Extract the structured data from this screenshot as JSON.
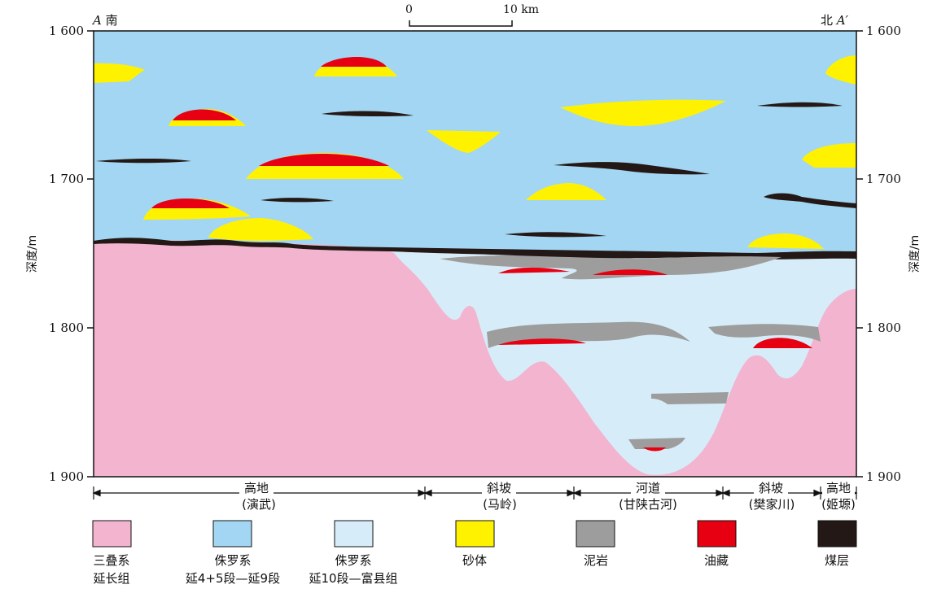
{
  "corners": {
    "left_letter": "A",
    "left_dir": "南",
    "right_dir": "北",
    "right_letter": "A′"
  },
  "scale_bar": {
    "start": "0",
    "end": "10 km"
  },
  "y_axis": {
    "title": "深度/m",
    "ticks": [
      "1 600",
      "1 700",
      "1 800",
      "1 900"
    ]
  },
  "zones": [
    {
      "line1": "高地",
      "line2": "(演武)"
    },
    {
      "line1": "斜坡",
      "line2": "(马岭)"
    },
    {
      "line1": "河道",
      "line2": "(甘陕古河)"
    },
    {
      "line1": "斜坡",
      "line2": "(樊家川)"
    },
    {
      "line1": "高地",
      "line2": "(姬塬)"
    }
  ],
  "legend": [
    {
      "id": "triassic",
      "color": "#f2b4cf",
      "line1": "三叠系",
      "line2": "延长组"
    },
    {
      "id": "jurassic-upper",
      "color": "#a3d6f2",
      "line1": "侏罗系",
      "line2": "延4+5段—延9段"
    },
    {
      "id": "jurassic-lower",
      "color": "#d6edf9",
      "line1": "侏罗系",
      "line2": "延10段—富县组"
    },
    {
      "id": "sand",
      "color": "#fff200",
      "line1": "砂体",
      "line2": ""
    },
    {
      "id": "mudstone",
      "color": "#9d9d9d",
      "line1": "泥岩",
      "line2": ""
    },
    {
      "id": "oil",
      "color": "#e60012",
      "line1": "油藏",
      "line2": ""
    },
    {
      "id": "coal",
      "color": "#231815",
      "line1": "煤层",
      "line2": ""
    }
  ]
}
